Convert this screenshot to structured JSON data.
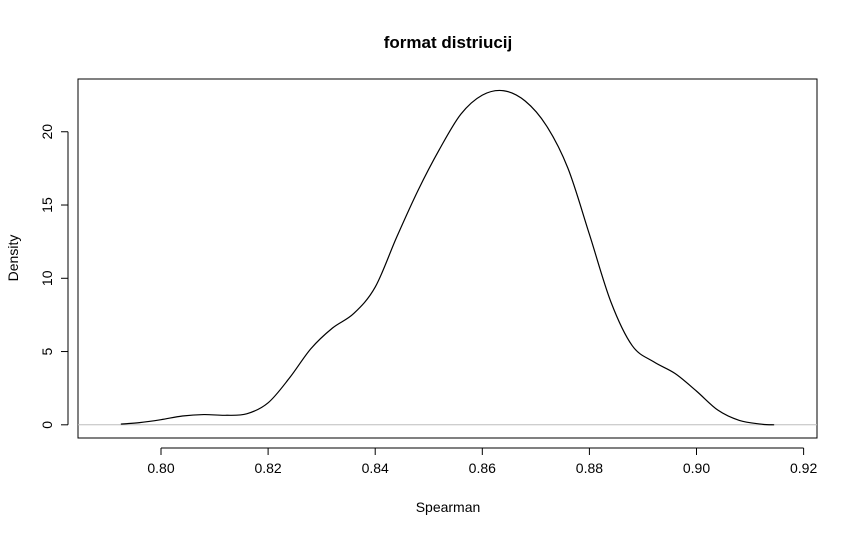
{
  "chart_data": {
    "type": "line",
    "title": "format distriucij",
    "xlabel": "Spearman",
    "ylabel": "Density",
    "xlim": [
      0.7845,
      0.9225
    ],
    "ylim": [
      -0.9,
      23.6
    ],
    "x_ticks": [
      0.8,
      0.82,
      0.84,
      0.86,
      0.88,
      0.9,
      0.92
    ],
    "x_tick_labels": [
      "0.80",
      "0.82",
      "0.84",
      "0.86",
      "0.88",
      "0.90",
      "0.92"
    ],
    "y_ticks": [
      0,
      5,
      10,
      15,
      20
    ],
    "y_tick_labels": [
      "0",
      "5",
      "10",
      "15",
      "20"
    ],
    "grid": false,
    "baseline": 0,
    "baseline_color": "#bebebe",
    "line_color": "#000000",
    "series": [
      {
        "x": [
          0.7925,
          0.796,
          0.8,
          0.804,
          0.808,
          0.812,
          0.816,
          0.82,
          0.824,
          0.828,
          0.832,
          0.836,
          0.84,
          0.844,
          0.848,
          0.852,
          0.856,
          0.86,
          0.864,
          0.868,
          0.872,
          0.876,
          0.88,
          0.884,
          0.888,
          0.892,
          0.896,
          0.9,
          0.904,
          0.908,
          0.912,
          0.9145
        ],
        "y": [
          0.05,
          0.15,
          0.35,
          0.6,
          0.7,
          0.65,
          0.75,
          1.5,
          3.2,
          5.2,
          6.6,
          7.6,
          9.4,
          12.8,
          16.0,
          18.8,
          21.2,
          22.5,
          22.8,
          22.1,
          20.4,
          17.5,
          13.0,
          8.4,
          5.4,
          4.3,
          3.5,
          2.3,
          1.0,
          0.3,
          0.05,
          0.0
        ]
      }
    ]
  }
}
